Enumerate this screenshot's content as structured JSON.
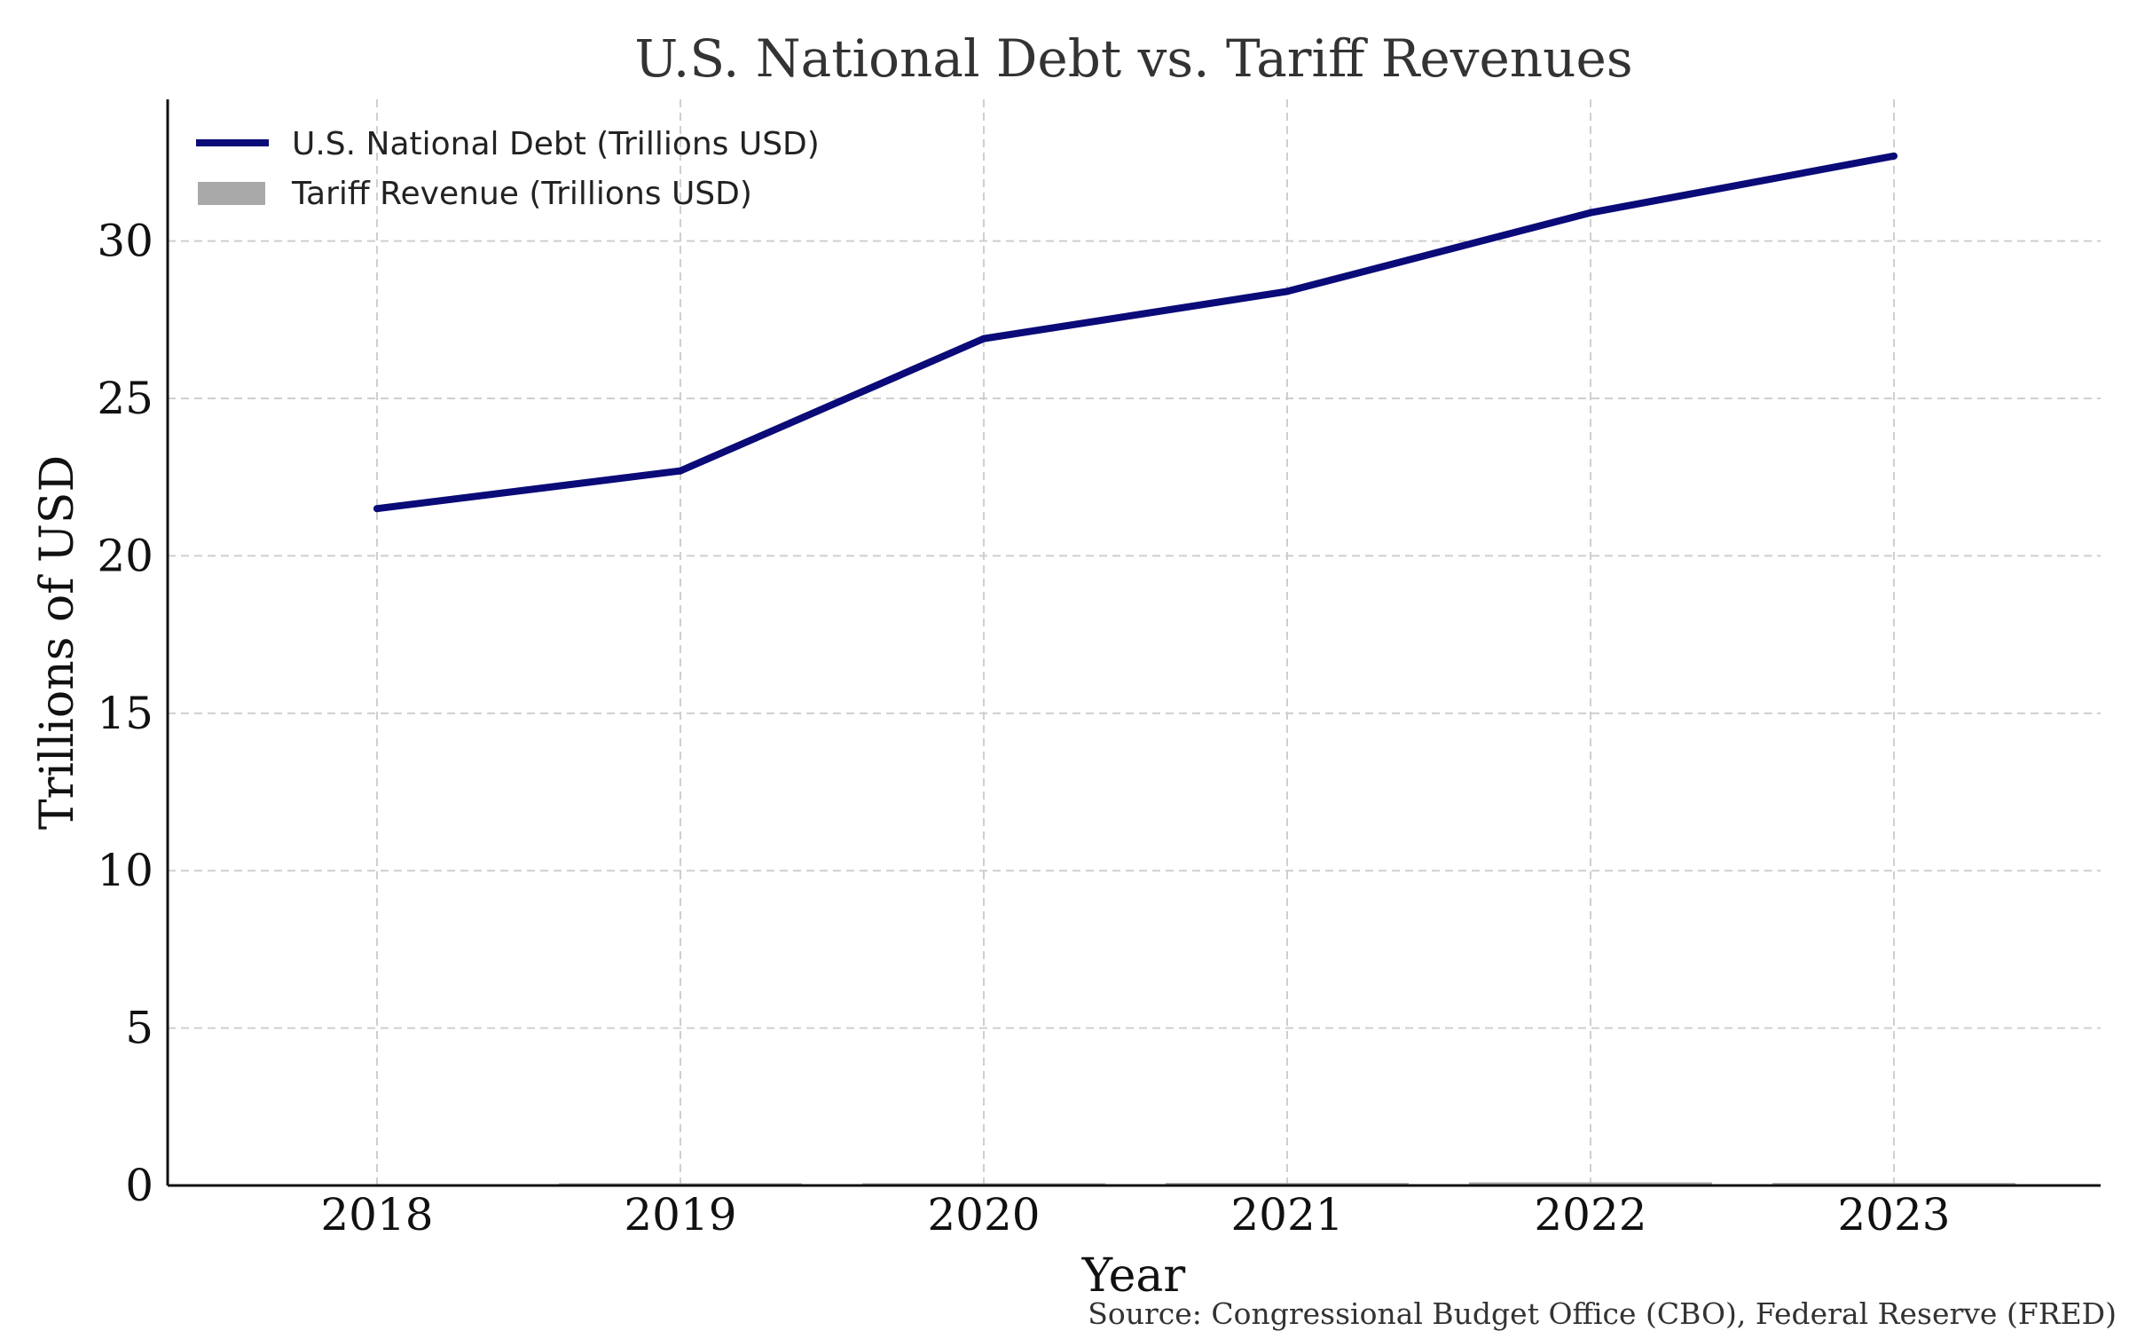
{
  "chart_data": {
    "type": "line",
    "title": "U.S. National Debt vs. Tariff Revenues",
    "xlabel": "Year",
    "ylabel": "Trillions of USD",
    "categories": [
      "2018",
      "2019",
      "2020",
      "2021",
      "2022",
      "2023"
    ],
    "series": [
      {
        "name": "U.S. National Debt (Trillions USD)",
        "kind": "line",
        "color": "#0a0a78",
        "values": [
          21.5,
          22.7,
          26.9,
          28.4,
          30.9,
          32.7
        ]
      },
      {
        "name": "Tariff Revenue (Trillions USD)",
        "kind": "bar",
        "color": "#a9a9a9",
        "values": [
          0.02,
          0.07,
          0.07,
          0.08,
          0.1,
          0.08
        ]
      }
    ],
    "ylim": [
      0,
      34.5
    ],
    "yticks": [
      "0",
      "5",
      "10",
      "15",
      "20",
      "25",
      "30"
    ],
    "grid": true,
    "legend_position": "top-left",
    "source": "Source: Congressional Budget Office (CBO), Federal Reserve (FRED)"
  }
}
